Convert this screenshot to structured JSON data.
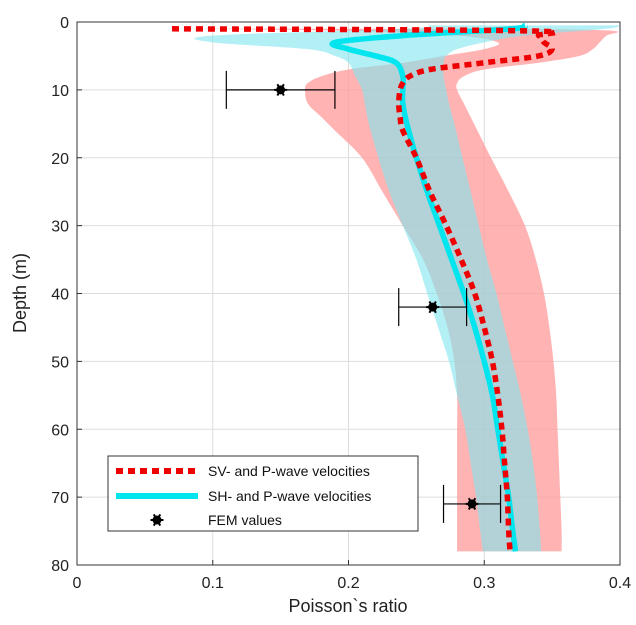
{
  "chart_data": {
    "type": "line",
    "xlabel": "Poisson`s ratio",
    "ylabel": "Depth (m)",
    "xlim": [
      0,
      0.4
    ],
    "ylim": [
      0,
      80
    ],
    "y_inverted": true,
    "grid": true,
    "xticks": [
      0,
      0.1,
      0.2,
      0.3,
      0.4
    ],
    "xtick_labels": [
      "0",
      "0.1",
      "0.2",
      "0.3",
      "0.4"
    ],
    "yticks": [
      0,
      10,
      20,
      30,
      40,
      50,
      60,
      70,
      80
    ],
    "ytick_labels": [
      "0",
      "10",
      "20",
      "30",
      "40",
      "50",
      "60",
      "70",
      "80"
    ],
    "legend_position": "bottom-left",
    "colors": {
      "sv_line": "#ee0000",
      "sv_band": "#ff9999",
      "sh_line": "#00e5ee",
      "sh_band": "#7fe6ee",
      "overlap_band": "#a8c4c4",
      "marker": "#000000"
    },
    "series": [
      {
        "name": "SV- and P-wave velocities",
        "style": "dotted",
        "depth": [
          1,
          1.3,
          2,
          3,
          4,
          5,
          6,
          7,
          8,
          9,
          10,
          12,
          14,
          16,
          20,
          25,
          30,
          35,
          40,
          45,
          50,
          55,
          60,
          65,
          70,
          75,
          78
        ],
        "x": [
          0.07,
          0.33,
          0.34,
          0.344,
          0.35,
          0.34,
          0.3,
          0.26,
          0.245,
          0.24,
          0.238,
          0.237,
          0.238,
          0.24,
          0.25,
          0.26,
          0.272,
          0.283,
          0.293,
          0.3,
          0.306,
          0.31,
          0.313,
          0.315,
          0.317,
          0.318,
          0.319
        ],
        "band_low": [
          0.07,
          0.2,
          0.28,
          0.31,
          0.3,
          0.27,
          0.24,
          0.2,
          0.18,
          0.17,
          0.168,
          0.17,
          0.18,
          0.19,
          0.21,
          0.225,
          0.24,
          0.255,
          0.265,
          0.273,
          0.278,
          0.28,
          0.28,
          0.28,
          0.28,
          0.28,
          0.28
        ],
        "band_high": [
          0.33,
          0.395,
          0.39,
          0.385,
          0.38,
          0.37,
          0.34,
          0.3,
          0.285,
          0.28,
          0.28,
          0.285,
          0.29,
          0.295,
          0.305,
          0.318,
          0.33,
          0.338,
          0.344,
          0.348,
          0.351,
          0.353,
          0.354,
          0.355,
          0.356,
          0.357,
          0.357
        ]
      },
      {
        "name": "SH- and P-wave velocities",
        "style": "solid",
        "depth": [
          0.5,
          1,
          2,
          3,
          4,
          5,
          6,
          8,
          10,
          12,
          15,
          20,
          25,
          30,
          35,
          40,
          45,
          50,
          55,
          60,
          65,
          70,
          75,
          78
        ],
        "x": [
          0.33,
          0.32,
          0.24,
          0.19,
          0.2,
          0.22,
          0.235,
          0.24,
          0.24,
          0.24,
          0.243,
          0.25,
          0.258,
          0.267,
          0.276,
          0.285,
          0.293,
          0.3,
          0.306,
          0.31,
          0.314,
          0.318,
          0.321,
          0.323
        ],
        "band_low": [
          0.26,
          0.24,
          0.1,
          0.1,
          0.17,
          0.19,
          0.2,
          0.205,
          0.21,
          0.212,
          0.215,
          0.222,
          0.23,
          0.24,
          0.25,
          0.258,
          0.266,
          0.274,
          0.28,
          0.286,
          0.29,
          0.294,
          0.297,
          0.299
        ],
        "band_high": [
          0.4,
          0.39,
          0.33,
          0.3,
          0.28,
          0.272,
          0.27,
          0.27,
          0.272,
          0.274,
          0.278,
          0.284,
          0.29,
          0.296,
          0.302,
          0.309,
          0.315,
          0.321,
          0.327,
          0.332,
          0.336,
          0.339,
          0.341,
          0.342
        ]
      }
    ],
    "markers": {
      "name": "FEM values",
      "points": [
        {
          "x": 0.15,
          "depth": 10,
          "xerr_low": 0.11,
          "xerr_high": 0.19
        },
        {
          "x": 0.262,
          "depth": 42,
          "xerr_low": 0.237,
          "xerr_high": 0.287
        },
        {
          "x": 0.291,
          "depth": 71,
          "xerr_low": 0.27,
          "xerr_high": 0.312
        }
      ]
    }
  }
}
